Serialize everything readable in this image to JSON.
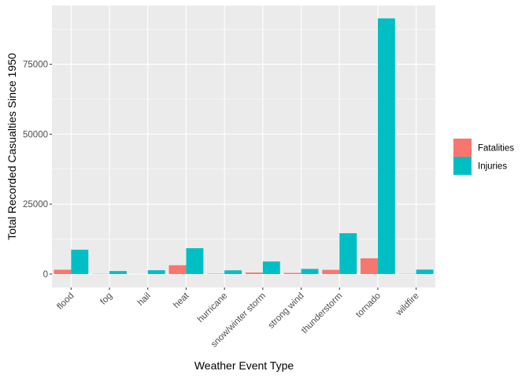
{
  "chart_data": {
    "type": "bar",
    "title": "",
    "xlabel": "Weather Event Type",
    "ylabel": "Total Recorded Casualties Since 1950",
    "categories": [
      "flood",
      "fog",
      "hail",
      "heat",
      "hurricane",
      "snow/winter storm",
      "strong wind",
      "thunderstorm",
      "tornado",
      "wildfire"
    ],
    "series": [
      {
        "name": "Fatalities",
        "color": "#F8766D",
        "values": [
          1550,
          80,
          15,
          3150,
          130,
          540,
          400,
          1500,
          5630,
          90
        ]
      },
      {
        "name": "Injuries",
        "color": "#00BFC4",
        "values": [
          8700,
          1080,
          1370,
          9250,
          1330,
          4500,
          1850,
          14600,
          91400,
          1600
        ]
      }
    ],
    "ylim": [
      -4800,
      96000
    ],
    "yticks": [
      0,
      25000,
      50000,
      75000
    ],
    "ytick_labels": [
      "0",
      "25000",
      "50000",
      "75000"
    ],
    "grid": true,
    "legend_position": "right",
    "colors": {
      "panel": "#EBEBEB",
      "grid": "#FFFFFF",
      "axis_text": "#4D4D4D"
    }
  }
}
